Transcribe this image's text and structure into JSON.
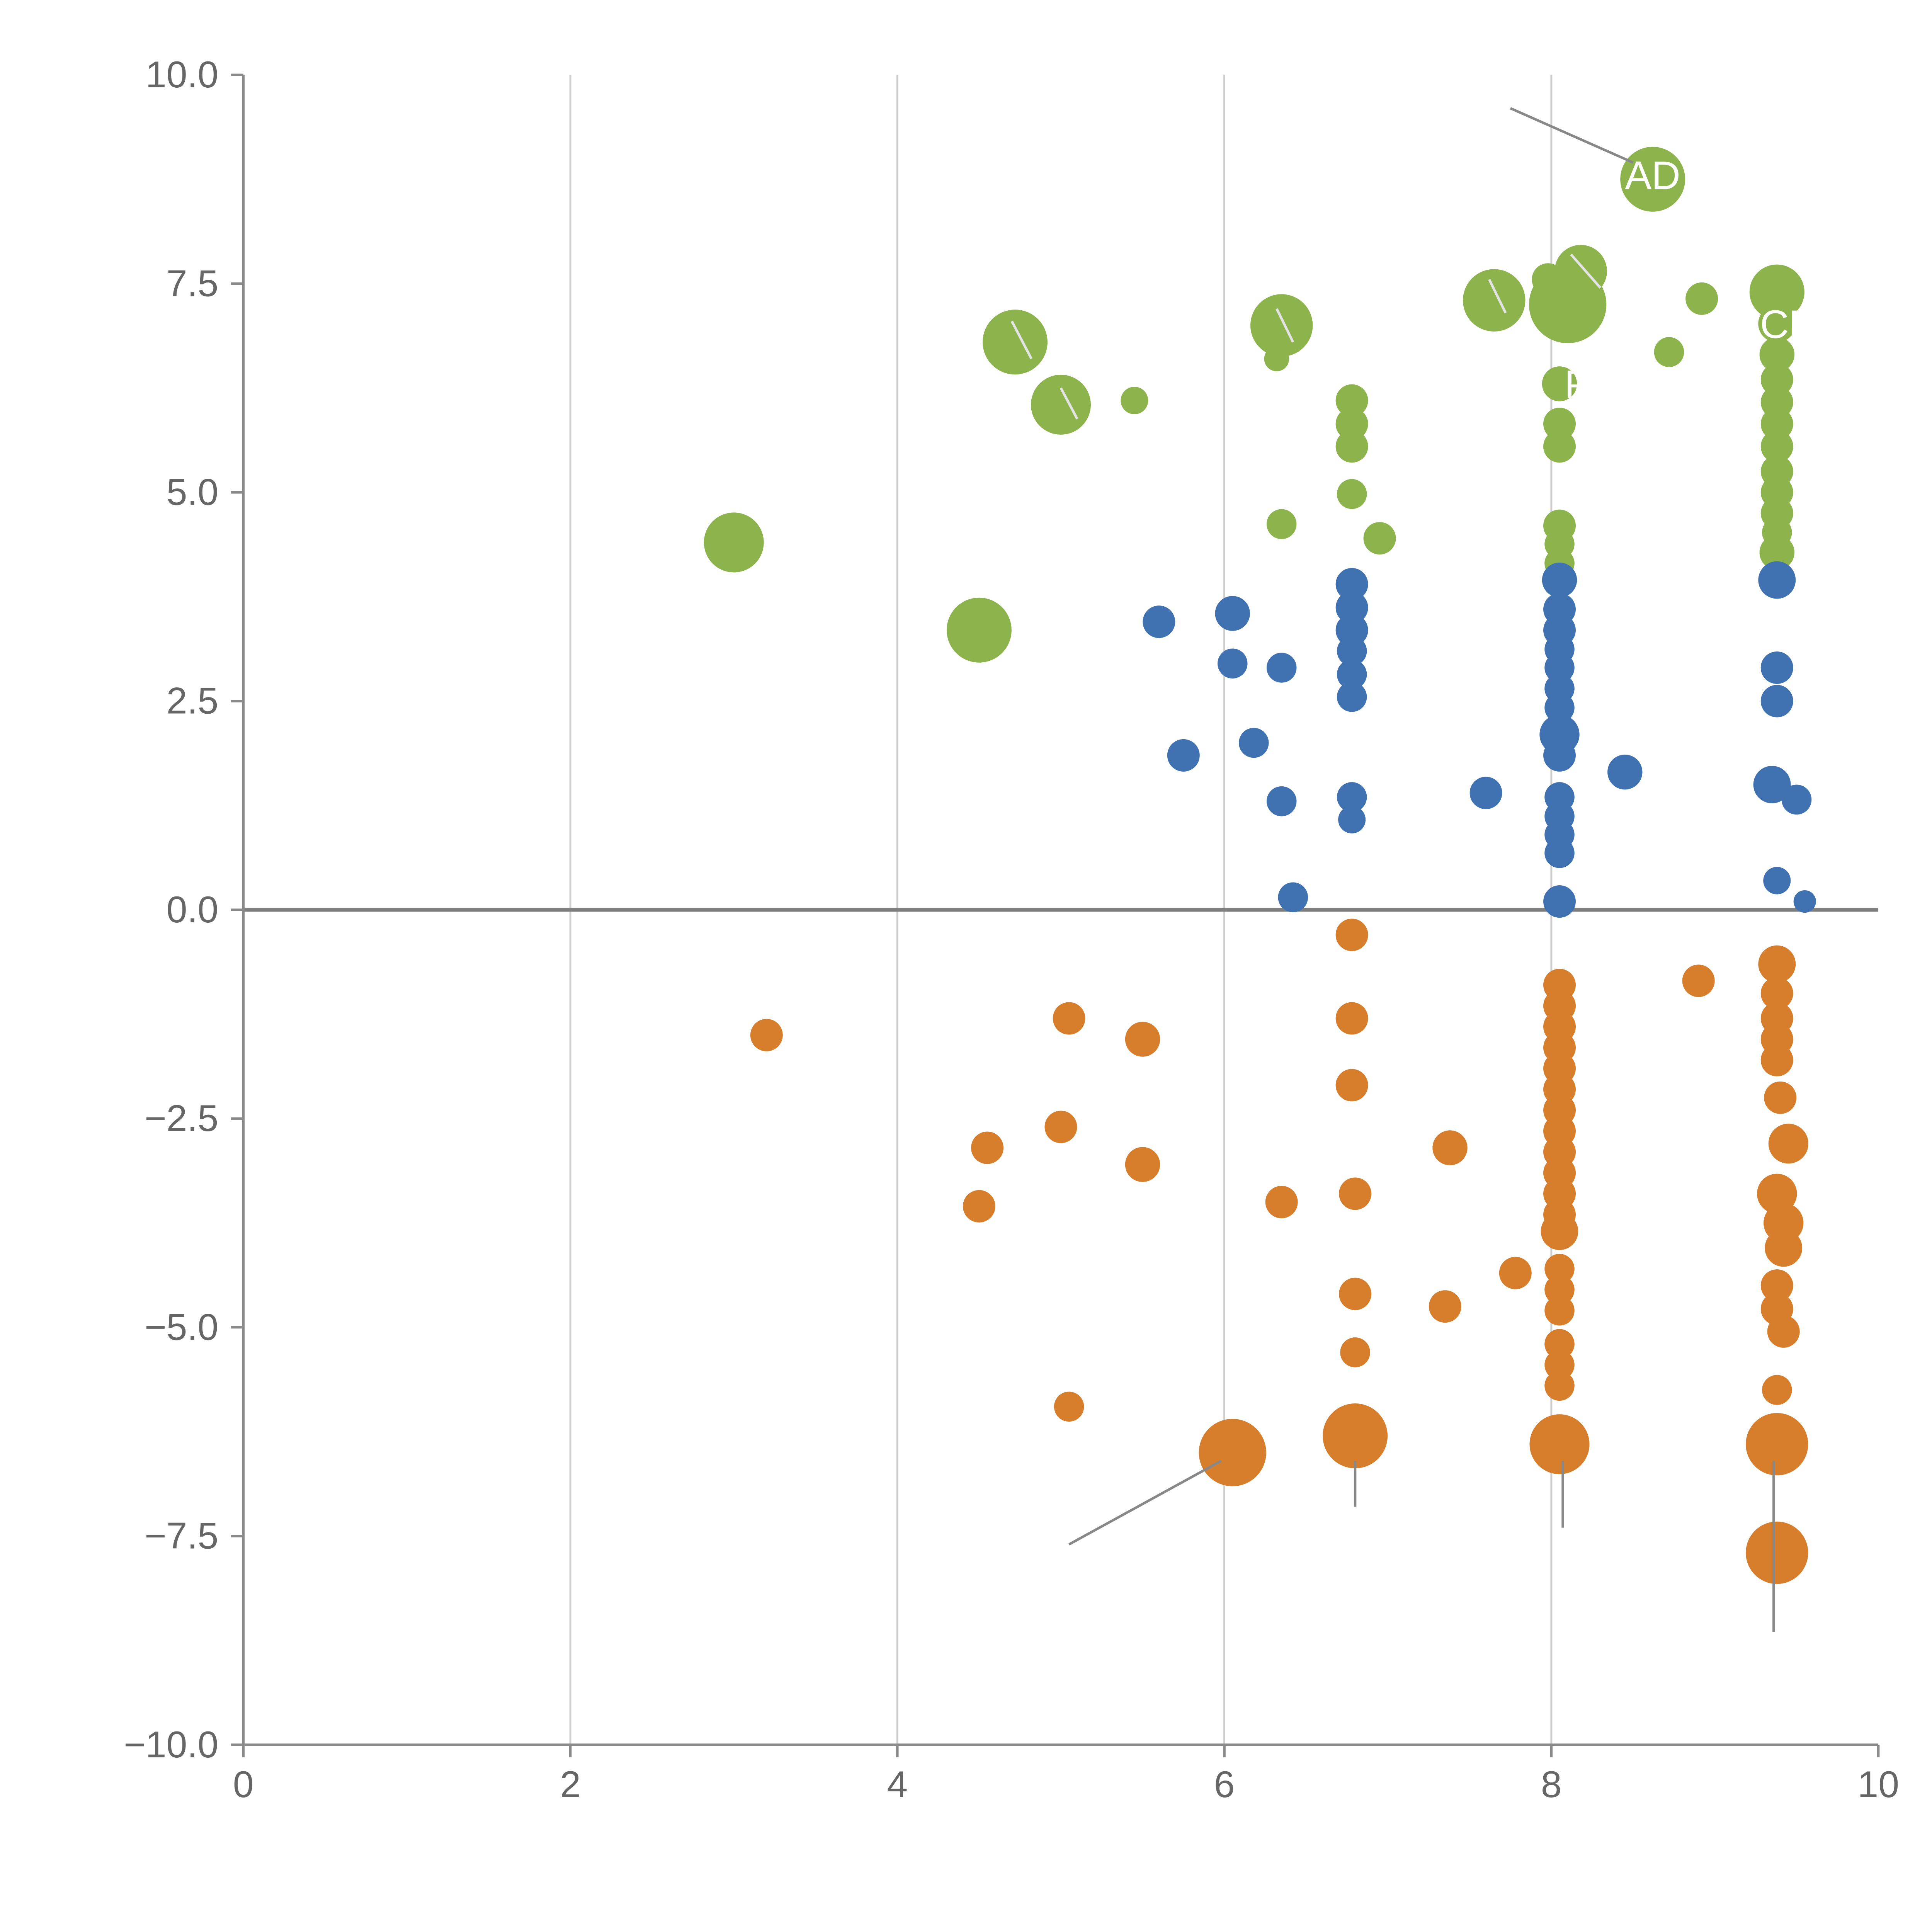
{
  "chart_data": {
    "type": "scatter",
    "title": "",
    "xlabel": "",
    "ylabel": "",
    "xlim": [
      0,
      10
    ],
    "ylim": [
      -10,
      10
    ],
    "x_ticks": [
      0,
      2,
      4,
      6,
      8,
      10
    ],
    "x_tick_labels": [
      "0",
      "2",
      "4",
      "6",
      "8",
      "10"
    ],
    "y_ticks": [
      -10,
      -7.5,
      -5,
      -2.5,
      0,
      2.5,
      5,
      7.5,
      10
    ],
    "y_tick_labels": [
      "−10.0",
      "−7.5",
      "−5.0",
      "−2.5",
      "0.0",
      "2.5",
      "5.0",
      "7.5",
      "10.0"
    ],
    "grid": {
      "vertical_lines": [
        2,
        4,
        6,
        8
      ],
      "zero_line_y": 0,
      "horizontal_lines": []
    },
    "legend": "none",
    "colors": {
      "green": "#8db34d",
      "blue": "#4072b2",
      "orange": "#d67e2c",
      "grid": "#cccccc",
      "axis": "#8a8a8a",
      "zero_line": "#808080",
      "tick_label": "#666666",
      "gray": "#888888",
      "light": "#e3e3e3",
      "label_text": "#ffffff"
    },
    "series": [
      {
        "name": "green",
        "color_key": "green",
        "points": [
          [
            3.0,
            4.4,
            24
          ],
          [
            4.5,
            3.35,
            26
          ],
          [
            4.72,
            6.8,
            26
          ],
          [
            5.0,
            6.05,
            24
          ],
          [
            5.45,
            6.1,
            11
          ],
          [
            6.35,
            7.0,
            25
          ],
          [
            6.32,
            6.6,
            10
          ],
          [
            6.35,
            4.62,
            12
          ],
          [
            6.78,
            6.1,
            13
          ],
          [
            6.78,
            5.82,
            13
          ],
          [
            6.78,
            5.55,
            13
          ],
          [
            6.78,
            4.98,
            12
          ],
          [
            6.95,
            4.45,
            13
          ],
          [
            7.65,
            7.3,
            25
          ],
          [
            7.98,
            7.55,
            13
          ],
          [
            8.1,
            7.25,
            31
          ],
          [
            8.18,
            7.65,
            21
          ],
          [
            8.05,
            6.3,
            14
          ],
          [
            8.05,
            5.82,
            13
          ],
          [
            8.05,
            5.55,
            13
          ],
          [
            8.05,
            4.6,
            13
          ],
          [
            8.05,
            4.38,
            12
          ],
          [
            8.05,
            4.15,
            12
          ],
          [
            8.62,
            8.75,
            26
          ],
          [
            8.72,
            6.68,
            12
          ],
          [
            8.92,
            7.32,
            13
          ],
          [
            9.38,
            7.4,
            22
          ],
          [
            9.38,
            7.02,
            15
          ],
          [
            9.38,
            6.65,
            14
          ],
          [
            9.38,
            6.35,
            13
          ],
          [
            9.38,
            6.08,
            13
          ],
          [
            9.38,
            5.82,
            13
          ],
          [
            9.38,
            5.55,
            13
          ],
          [
            9.38,
            5.25,
            13
          ],
          [
            9.38,
            5.0,
            13
          ],
          [
            9.38,
            4.75,
            13
          ],
          [
            9.38,
            4.52,
            12
          ],
          [
            9.38,
            4.28,
            14
          ]
        ]
      },
      {
        "name": "blue",
        "color_key": "blue",
        "points": [
          [
            5.6,
            3.45,
            13
          ],
          [
            5.75,
            1.85,
            13
          ],
          [
            6.05,
            3.55,
            14
          ],
          [
            6.05,
            2.95,
            12
          ],
          [
            6.18,
            2.0,
            12
          ],
          [
            6.35,
            2.9,
            12
          ],
          [
            6.35,
            1.3,
            12
          ],
          [
            6.42,
            0.15,
            12
          ],
          [
            6.78,
            3.9,
            13
          ],
          [
            6.78,
            3.62,
            13
          ],
          [
            6.78,
            3.35,
            13
          ],
          [
            6.78,
            3.1,
            12
          ],
          [
            6.78,
            2.82,
            12
          ],
          [
            6.78,
            2.55,
            12
          ],
          [
            6.78,
            1.35,
            12
          ],
          [
            6.78,
            1.08,
            11
          ],
          [
            7.6,
            1.4,
            13
          ],
          [
            8.05,
            3.95,
            14
          ],
          [
            8.05,
            3.6,
            13
          ],
          [
            8.05,
            3.35,
            13
          ],
          [
            8.05,
            3.12,
            12
          ],
          [
            8.05,
            2.9,
            12
          ],
          [
            8.05,
            2.65,
            12
          ],
          [
            8.05,
            2.42,
            12
          ],
          [
            8.05,
            2.1,
            16
          ],
          [
            8.05,
            1.85,
            13
          ],
          [
            8.05,
            1.35,
            12
          ],
          [
            8.05,
            1.12,
            12
          ],
          [
            8.05,
            0.9,
            12
          ],
          [
            8.05,
            0.68,
            12
          ],
          [
            8.05,
            0.1,
            13
          ],
          [
            8.45,
            1.65,
            14
          ],
          [
            9.38,
            3.95,
            15
          ],
          [
            9.38,
            2.9,
            13
          ],
          [
            9.38,
            2.5,
            13
          ],
          [
            9.35,
            1.5,
            15
          ],
          [
            9.5,
            1.32,
            12
          ],
          [
            9.38,
            0.35,
            11
          ],
          [
            9.55,
            0.1,
            9
          ]
        ]
      },
      {
        "name": "orange",
        "color_key": "orange",
        "points": [
          [
            3.2,
            -1.5,
            13
          ],
          [
            4.55,
            -2.85,
            13
          ],
          [
            4.5,
            -3.55,
            13
          ],
          [
            5.05,
            -1.3,
            13
          ],
          [
            5.0,
            -2.6,
            13
          ],
          [
            5.05,
            -5.95,
            12
          ],
          [
            5.5,
            -1.55,
            14
          ],
          [
            5.5,
            -3.05,
            14
          ],
          [
            6.05,
            -6.5,
            27
          ],
          [
            6.35,
            -3.5,
            13
          ],
          [
            6.78,
            -0.3,
            13
          ],
          [
            6.78,
            -1.3,
            13
          ],
          [
            6.78,
            -2.1,
            13
          ],
          [
            6.8,
            -3.4,
            13
          ],
          [
            6.8,
            -4.6,
            13
          ],
          [
            6.8,
            -5.3,
            12
          ],
          [
            6.8,
            -6.3,
            26
          ],
          [
            7.38,
            -2.85,
            14
          ],
          [
            7.35,
            -4.75,
            13
          ],
          [
            7.78,
            -4.35,
            13
          ],
          [
            8.05,
            -0.9,
            13
          ],
          [
            8.05,
            -1.15,
            13
          ],
          [
            8.05,
            -1.4,
            13
          ],
          [
            8.05,
            -1.65,
            13
          ],
          [
            8.05,
            -1.9,
            13
          ],
          [
            8.05,
            -2.15,
            13
          ],
          [
            8.05,
            -2.4,
            13
          ],
          [
            8.05,
            -2.65,
            13
          ],
          [
            8.05,
            -2.9,
            13
          ],
          [
            8.05,
            -3.15,
            13
          ],
          [
            8.05,
            -3.4,
            13
          ],
          [
            8.05,
            -3.65,
            13
          ],
          [
            8.05,
            -3.85,
            15
          ],
          [
            8.05,
            -4.3,
            12
          ],
          [
            8.05,
            -4.55,
            12
          ],
          [
            8.05,
            -4.8,
            12
          ],
          [
            8.05,
            -5.2,
            12
          ],
          [
            8.05,
            -5.45,
            12
          ],
          [
            8.05,
            -5.7,
            12
          ],
          [
            8.05,
            -6.4,
            24
          ],
          [
            8.9,
            -0.85,
            13
          ],
          [
            9.38,
            -0.65,
            15
          ],
          [
            9.38,
            -1.0,
            13
          ],
          [
            9.38,
            -1.3,
            13
          ],
          [
            9.38,
            -1.55,
            13
          ],
          [
            9.38,
            -1.8,
            13
          ],
          [
            9.4,
            -2.25,
            13
          ],
          [
            9.45,
            -2.8,
            16
          ],
          [
            9.38,
            -3.4,
            16
          ],
          [
            9.42,
            -3.75,
            16
          ],
          [
            9.42,
            -4.05,
            15
          ],
          [
            9.38,
            -4.5,
            13
          ],
          [
            9.38,
            -4.78,
            13
          ],
          [
            9.42,
            -5.05,
            13
          ],
          [
            9.38,
            -5.75,
            12
          ],
          [
            9.38,
            -6.4,
            25
          ],
          [
            9.38,
            -7.7,
            25
          ]
        ]
      }
    ],
    "annotations": [
      {
        "text": "AD",
        "x": 8.45,
        "y": 8.78
      },
      {
        "text": "DCP",
        "x": 9.1,
        "y": 7.0
      },
      {
        "text": "P",
        "x": 8.08,
        "y": 6.28
      }
    ],
    "leader_lines": [
      {
        "x1": 7.75,
        "y1": 9.6,
        "x2": 8.5,
        "y2": 8.95,
        "style": "gray"
      },
      {
        "x1": 5.05,
        "y1": -7.6,
        "x2": 5.98,
        "y2": -6.6,
        "style": "gray"
      },
      {
        "x1": 6.8,
        "y1": -6.6,
        "x2": 6.8,
        "y2": -7.15,
        "style": "gray"
      },
      {
        "x1": 8.07,
        "y1": -6.6,
        "x2": 8.07,
        "y2": -7.4,
        "style": "gray"
      },
      {
        "x1": 9.36,
        "y1": -6.6,
        "x2": 9.36,
        "y2": -8.65,
        "style": "gray"
      },
      {
        "x1": 4.7,
        "y1": 7.05,
        "x2": 4.82,
        "y2": 6.6,
        "style": "light"
      },
      {
        "x1": 5.0,
        "y1": 6.25,
        "x2": 5.1,
        "y2": 5.88,
        "style": "light"
      },
      {
        "x1": 6.32,
        "y1": 7.2,
        "x2": 6.42,
        "y2": 6.8,
        "style": "light"
      },
      {
        "x1": 7.62,
        "y1": 7.55,
        "x2": 7.72,
        "y2": 7.15,
        "style": "light"
      },
      {
        "x1": 8.12,
        "y1": 7.85,
        "x2": 8.3,
        "y2": 7.45,
        "style": "light"
      }
    ]
  }
}
